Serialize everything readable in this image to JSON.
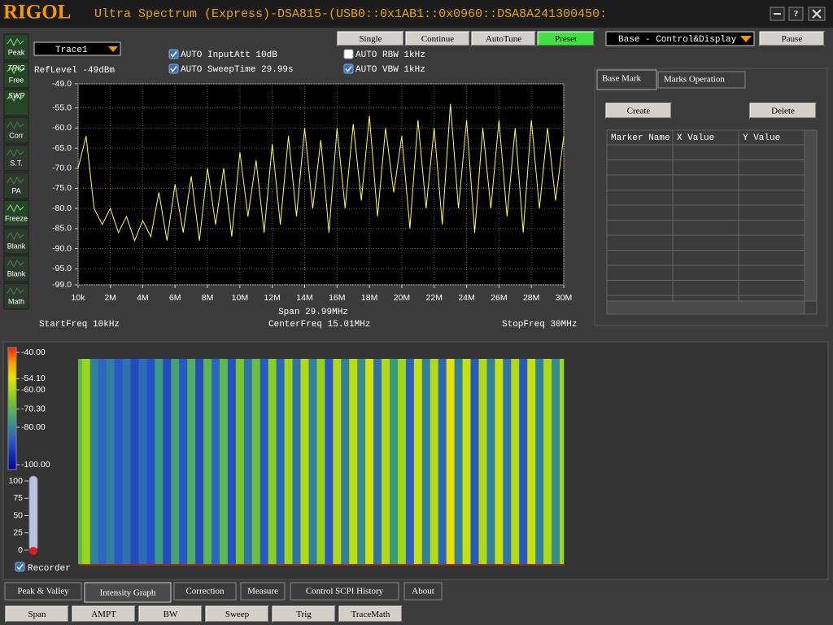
{
  "header": {
    "brand": "RIGOL",
    "title": "Ultra Spectrum (Express)-DSA815-(USB0::0x1AB1::0x0960::DSA8A241300450:",
    "help": "?"
  },
  "sidebar": [
    {
      "label": "Peak",
      "enabled": true
    },
    {
      "top": "TRIG",
      "label": "Free",
      "enabled": true
    },
    {
      "top": "SWP",
      "enabled": true
    },
    {
      "label": "Corr",
      "enabled": false
    },
    {
      "label": "S.T.",
      "enabled": false
    },
    {
      "label": "PA",
      "enabled": false
    },
    {
      "label": "Freeze",
      "enabled": true
    },
    {
      "label": "Blank",
      "enabled": false
    },
    {
      "label": "Blank",
      "enabled": false
    },
    {
      "label": "Math",
      "enabled": false
    }
  ],
  "trace_select": "Trace1",
  "ref_level": "RefLevel  -49dBm",
  "checkboxes": [
    {
      "label": "AUTO InputAtt  10dB",
      "checked": true
    },
    {
      "label": "AUTO SweepTime  29.99s",
      "checked": true
    },
    {
      "label": "AUTO RBW   1kHz",
      "checked": false
    },
    {
      "label": "AUTO VBW   1kHz",
      "checked": true
    }
  ],
  "toolbar": [
    {
      "label": "Single",
      "active": false
    },
    {
      "label": "Continue",
      "active": false
    },
    {
      "label": "AutoTune",
      "active": false
    },
    {
      "label": "Preset",
      "active": true
    }
  ],
  "mode_select": "Base - Control&Display",
  "pause": "Pause",
  "marker_panel": {
    "tabs": [
      "Base Mark",
      "Marks Operation"
    ],
    "buttons": [
      "Create",
      "Delete"
    ],
    "columns": [
      "Marker Name",
      "X Value",
      "Y Value"
    ]
  },
  "spectrum": {
    "type": "line",
    "color": "#ffff50",
    "grid": true,
    "ylim": [
      -99,
      -49
    ],
    "yticks": [
      {
        "value": -49,
        "label": "-49.0"
      },
      {
        "value": -55,
        "label": "-55.0"
      },
      {
        "value": -60,
        "label": "-60.0"
      },
      {
        "value": -65,
        "label": "-65.0"
      },
      {
        "value": -70,
        "label": "-70.0"
      },
      {
        "value": -75,
        "label": "-75.0"
      },
      {
        "value": -80,
        "label": "-80.0"
      },
      {
        "value": -85,
        "label": "-85.0"
      },
      {
        "value": -90,
        "label": "-90.0"
      },
      {
        "value": -95,
        "label": "-95.0"
      },
      {
        "value": -99,
        "label": "-99.0"
      }
    ],
    "xlim": [
      0.01,
      30
    ],
    "xticks": [
      {
        "value": 0.01,
        "label": "10k"
      },
      {
        "value": 2,
        "label": "2M"
      },
      {
        "value": 4,
        "label": "4M"
      },
      {
        "value": 6,
        "label": "6M"
      },
      {
        "value": 8,
        "label": "8M"
      },
      {
        "value": 10,
        "label": "10M"
      },
      {
        "value": 12,
        "label": "12M"
      },
      {
        "value": 14,
        "label": "14M"
      },
      {
        "value": 16,
        "label": "16M"
      },
      {
        "value": 18,
        "label": "18M"
      },
      {
        "value": 20,
        "label": "20M"
      },
      {
        "value": 22,
        "label": "22M"
      },
      {
        "value": 24,
        "label": "24M"
      },
      {
        "value": 26,
        "label": "26M"
      },
      {
        "value": 28,
        "label": "28M"
      },
      {
        "value": 30,
        "label": "30M"
      }
    ],
    "x": [
      0.01,
      0.5,
      1,
      1.5,
      2,
      2.5,
      3,
      3.5,
      4,
      4.5,
      5,
      5.5,
      6,
      6.5,
      7,
      7.5,
      8,
      8.5,
      9,
      9.5,
      10,
      10.5,
      11,
      11.5,
      12,
      12.5,
      13,
      13.5,
      14,
      14.5,
      15,
      15.5,
      16,
      16.5,
      17,
      17.5,
      18,
      18.5,
      19,
      19.5,
      20,
      20.5,
      21,
      21.5,
      22,
      22.5,
      23,
      23.5,
      24,
      24.5,
      25,
      25.5,
      26,
      26.5,
      27,
      27.5,
      28,
      28.5,
      29,
      29.5,
      30
    ],
    "values": [
      -70,
      -62,
      -80,
      -84,
      -80,
      -86,
      -82,
      -88,
      -83,
      -87,
      -76,
      -88,
      -74,
      -86,
      -72,
      -88,
      -70,
      -84,
      -70,
      -87,
      -66,
      -82,
      -68,
      -86,
      -64,
      -84,
      -62,
      -82,
      -60,
      -80,
      -63,
      -86,
      -60,
      -80,
      -59,
      -78,
      -57,
      -82,
      -60,
      -76,
      -62,
      -85,
      -58,
      -80,
      -60,
      -84,
      -54,
      -80,
      -58,
      -86,
      -60,
      -80,
      -58,
      -82,
      -60,
      -86,
      -58,
      -80,
      -60,
      -78,
      -62
    ],
    "span": "Span  29.99MHz",
    "start": "StartFreq  10kHz",
    "center": "CenterFreq  15.01MHz",
    "stop": "StopFreq  30MHz"
  },
  "intensity": {
    "range": [
      -100,
      -40
    ],
    "scale_ticks": [
      {
        "value": -40,
        "label": "-40.00"
      },
      {
        "value": -54.1,
        "label": "-54.10"
      },
      {
        "value": -60,
        "label": "-60.00"
      },
      {
        "value": -70.3,
        "label": "-70.30"
      },
      {
        "value": -80,
        "label": "-80.00"
      },
      {
        "value": -100,
        "label": "-100.00"
      }
    ],
    "recorder_ticks": [
      100,
      75,
      50,
      25,
      0
    ],
    "recorder": {
      "label": "Recorder",
      "checked": true
    }
  },
  "bottom_tabs": [
    {
      "label": "Peak & Valley",
      "active": false
    },
    {
      "label": "Intensity Graph",
      "active": true
    },
    {
      "label": "Correction",
      "active": false
    },
    {
      "label": "Measure",
      "active": false
    },
    {
      "label": "Control SCPI History",
      "active": false
    },
    {
      "label": "About",
      "active": false
    }
  ],
  "bottom_buttons": [
    "Span",
    "AMPT",
    "BW",
    "Sweep",
    "Trig",
    "TraceMath"
  ]
}
